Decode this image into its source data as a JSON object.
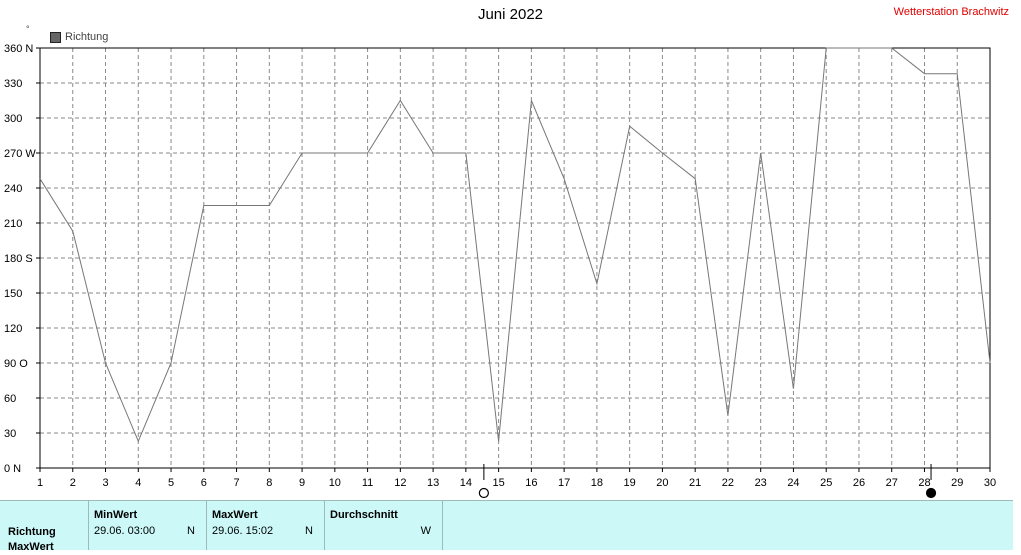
{
  "header": {
    "title": "Juni 2022",
    "station": "Wetterstation Brachwitz",
    "degree_mark": "°"
  },
  "legend": {
    "label": "Richtung",
    "color": "#666666"
  },
  "chart_data": {
    "type": "line",
    "title": "Juni 2022",
    "x": [
      1,
      2,
      3,
      4,
      5,
      6,
      7,
      8,
      9,
      10,
      11,
      12,
      13,
      14,
      15,
      16,
      17,
      18,
      19,
      20,
      21,
      22,
      23,
      24,
      25,
      26,
      27,
      28,
      29,
      30
    ],
    "series": [
      {
        "name": "Richtung",
        "values": [
          248,
          203,
          90,
          23,
          90,
          225,
          225,
          225,
          270,
          270,
          270,
          315,
          270,
          270,
          23,
          315,
          248,
          158,
          293,
          270,
          248,
          45,
          270,
          68,
          360,
          360,
          360,
          338,
          338,
          90
        ]
      }
    ],
    "ylim": [
      0,
      360
    ],
    "xlim": [
      1,
      30
    ],
    "yticks": [
      {
        "value": 360,
        "label": "360 N"
      },
      {
        "value": 330,
        "label": "330"
      },
      {
        "value": 300,
        "label": "300"
      },
      {
        "value": 270,
        "label": "270 W"
      },
      {
        "value": 240,
        "label": "240"
      },
      {
        "value": 210,
        "label": "210"
      },
      {
        "value": 180,
        "label": "180 S"
      },
      {
        "value": 150,
        "label": "150"
      },
      {
        "value": 120,
        "label": "120"
      },
      {
        "value": 90,
        "label": "90  O"
      },
      {
        "value": 60,
        "label": "60"
      },
      {
        "value": 30,
        "label": "30"
      },
      {
        "value": 0,
        "label": "0    N"
      }
    ],
    "xticks": [
      "1",
      "2",
      "3",
      "4",
      "5",
      "6",
      "7",
      "8",
      "9",
      "10",
      "11",
      "12",
      "13",
      "14",
      "15",
      "16",
      "17",
      "18",
      "19",
      "20",
      "21",
      "22",
      "23",
      "24",
      "25",
      "26",
      "27",
      "28",
      "29",
      "30"
    ],
    "moon_markers": [
      {
        "day": 14.55,
        "phase": "full"
      },
      {
        "day": 28.2,
        "phase": "new"
      }
    ],
    "grid": true,
    "line_color": "#777777"
  },
  "table": {
    "row_label": "Richtung",
    "row_label_2": "MaxWert",
    "columns": [
      {
        "header": "MinWert",
        "value": "29.06.  03:00",
        "unit": "N"
      },
      {
        "header": "MaxWert",
        "value": "29.06.  15:02",
        "unit": "N"
      },
      {
        "header": "Durchschnitt",
        "value": "",
        "unit": "W"
      }
    ]
  }
}
